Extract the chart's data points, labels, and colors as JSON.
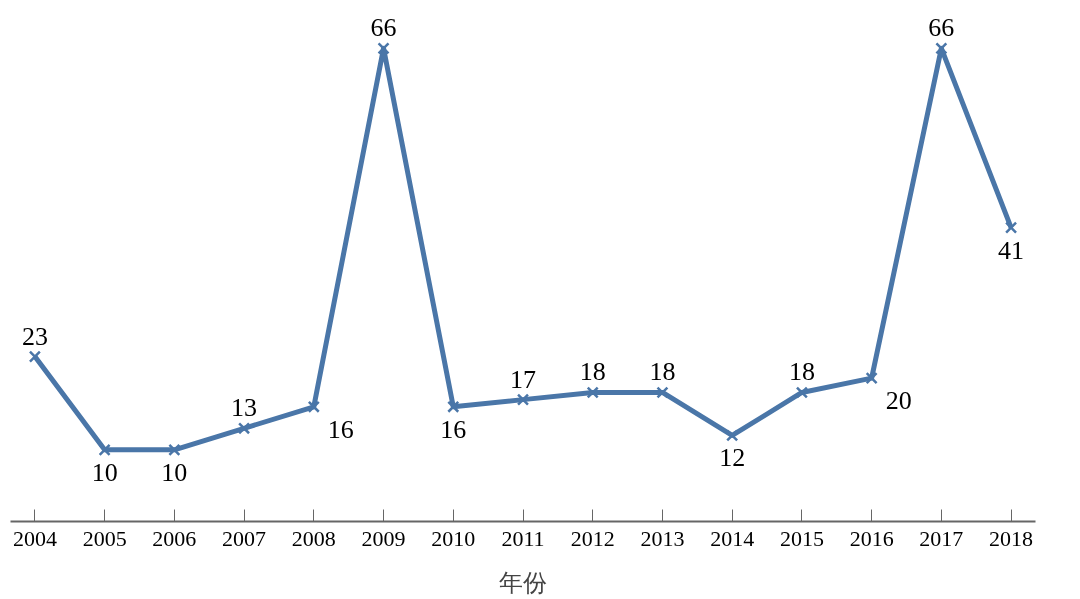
{
  "chart_data": {
    "type": "line",
    "xlabel": "年份",
    "categories": [
      "2004",
      "2005",
      "2006",
      "2007",
      "2008",
      "2009",
      "2010",
      "2011",
      "2012",
      "2013",
      "2014",
      "2015",
      "2016",
      "2017",
      "2018"
    ],
    "series": [
      {
        "color": "#4a76a8",
        "values": [
          23,
          10,
          10,
          13,
          16,
          66,
          16,
          17,
          18,
          18,
          12,
          18,
          20,
          66,
          41
        ]
      }
    ],
    "data_labels": true,
    "marker": "cross",
    "line_style": "solid"
  }
}
